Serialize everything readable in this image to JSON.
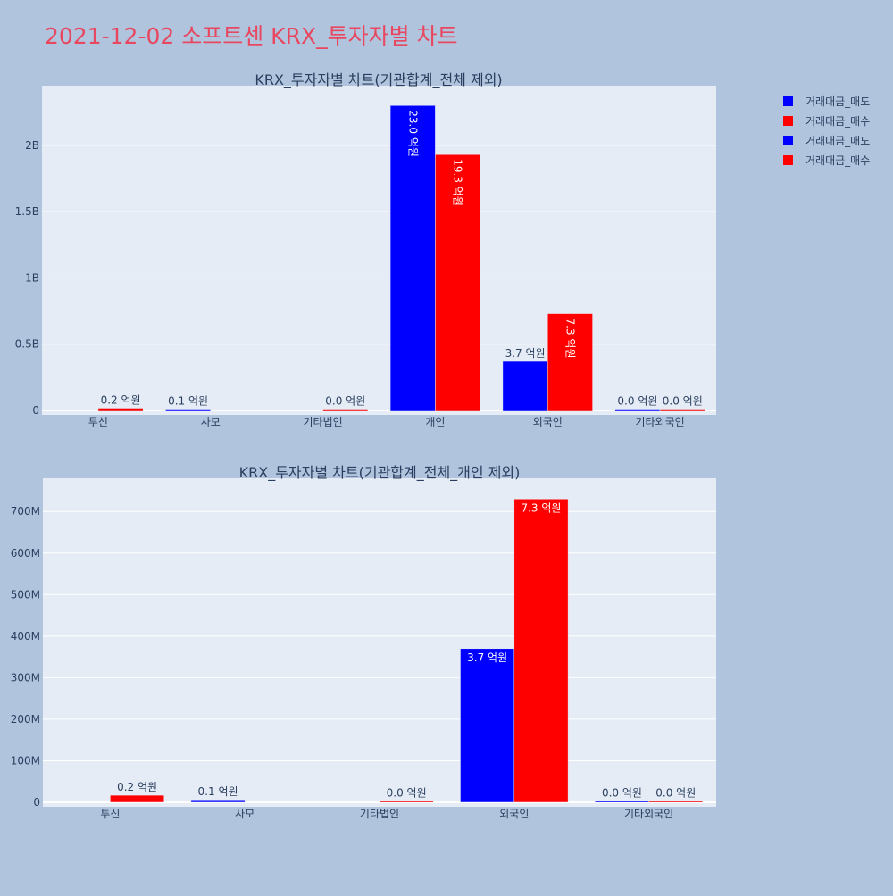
{
  "page_title": "2021-12-02 소프트센 KRX_투자자별 차트",
  "legend": [
    {
      "label": "거래대금_매도",
      "color": "#0000ff"
    },
    {
      "label": "거래대금_매수",
      "color": "#ff0000"
    },
    {
      "label": "거래대금_매도",
      "color": "#0000ff"
    },
    {
      "label": "거래대금_매수",
      "color": "#ff0000"
    }
  ],
  "colors": {
    "background": "#b0c4de",
    "plot_background": "#e5ecf6",
    "title": "#e8475f",
    "sell": "#0000ff",
    "buy": "#ff0000"
  },
  "chart_data": [
    {
      "type": "bar",
      "title": "KRX_투자자별 차트(기관합계_전체 제외)",
      "categories": [
        "투신",
        "사모",
        "기타법인",
        "개인",
        "외국인",
        "기타외국인"
      ],
      "series": [
        {
          "name": "거래대금_매도",
          "color": "#0000ff",
          "values": [
            0,
            6000000,
            0,
            2300000000,
            370000000,
            1000000
          ],
          "labels": [
            "",
            "0.1 억원",
            "",
            "23.0 억원",
            "3.7 억원",
            "0.0 억원"
          ]
        },
        {
          "name": "거래대금_매수",
          "color": "#ff0000",
          "values": [
            17000000,
            0,
            1000000,
            1930000000,
            730000000,
            1000000
          ],
          "labels": [
            "0.2 억원",
            "",
            "0.0 억원",
            "19.3 억원",
            "7.3 억원",
            "0.0 억원"
          ]
        }
      ],
      "ylim": [
        0,
        2450000000
      ],
      "yticks": [
        {
          "value": 0,
          "label": "0"
        },
        {
          "value": 500000000,
          "label": "0.5B"
        },
        {
          "value": 1000000000,
          "label": "1B"
        },
        {
          "value": 1500000000,
          "label": "1.5B"
        },
        {
          "value": 2000000000,
          "label": "2B"
        }
      ],
      "grid": true
    },
    {
      "type": "bar",
      "title": "KRX_투자자별 차트(기관합계_전체_개인 제외)",
      "categories": [
        "투신",
        "사모",
        "기타법인",
        "외국인",
        "기타외국인"
      ],
      "series": [
        {
          "name": "거래대금_매도",
          "color": "#0000ff",
          "values": [
            0,
            6000000,
            0,
            370000000,
            1000000
          ],
          "labels": [
            "",
            "0.1 억원",
            "",
            "3.7 억원",
            "0.0 억원"
          ]
        },
        {
          "name": "거래대금_매수",
          "color": "#ff0000",
          "values": [
            17000000,
            0,
            1000000,
            730000000,
            1000000
          ],
          "labels": [
            "0.2 억원",
            "",
            "0.0 억원",
            "7.3 억원",
            "0.0 억원"
          ]
        }
      ],
      "ylim": [
        0,
        780000000
      ],
      "yticks": [
        {
          "value": 0,
          "label": "0"
        },
        {
          "value": 100000000,
          "label": "100M"
        },
        {
          "value": 200000000,
          "label": "200M"
        },
        {
          "value": 300000000,
          "label": "300M"
        },
        {
          "value": 400000000,
          "label": "400M"
        },
        {
          "value": 500000000,
          "label": "500M"
        },
        {
          "value": 600000000,
          "label": "600M"
        },
        {
          "value": 700000000,
          "label": "700M"
        }
      ],
      "grid": true
    }
  ]
}
